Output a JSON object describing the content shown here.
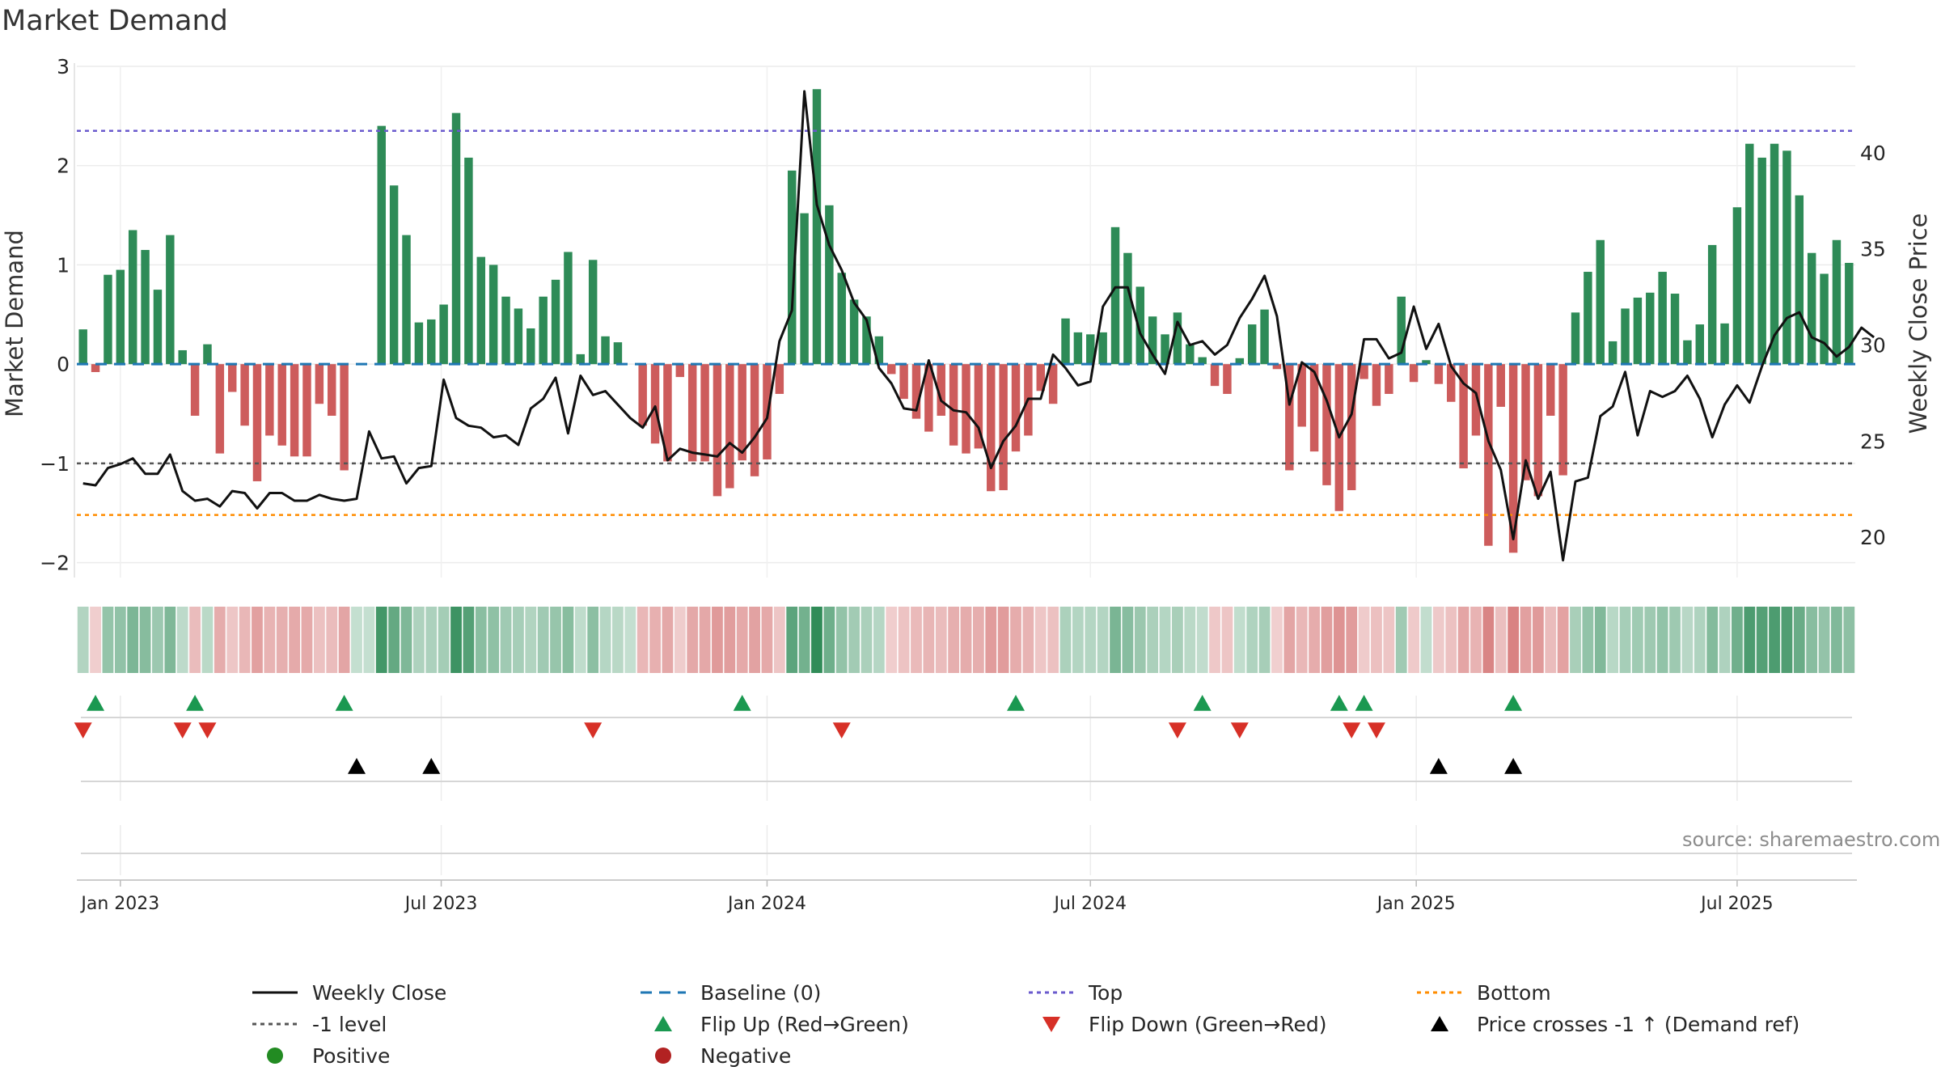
{
  "title": "Market Demand",
  "source": "source: sharemaestro.com",
  "colors": {
    "positive": "#2e8b57",
    "negative": "#cd5c5c",
    "close": "#111111",
    "baseline": "#1f77b4",
    "top": "#6a5acd",
    "bottom": "#ff8c00",
    "minus1": "#555555",
    "flip_up": "#1a9850",
    "flip_down": "#d73027",
    "cross": "#000000",
    "legend_positive": "#228b22",
    "legend_negative": "#b22222"
  },
  "chart_data": {
    "type": "bar",
    "title": "Market Demand",
    "ylabel": "Market Demand",
    "y2label": "Weekly Close Price",
    "ylim": [
      -2.15,
      3.0
    ],
    "y2lim": [
      17.9,
      44.5
    ],
    "yticks": [
      3,
      2,
      1,
      0,
      -1,
      -2
    ],
    "ytick_labels": [
      "3",
      "2",
      "1",
      "0",
      "−1",
      "−2"
    ],
    "y2ticks": [
      40,
      35,
      30,
      25,
      20
    ],
    "y2tick_labels": [
      "40",
      "35",
      "30",
      "25",
      "20"
    ],
    "xticks": [
      {
        "label": "Jan 2023",
        "week": 3.0
      },
      {
        "label": "Jul 2023",
        "week": 28.8
      },
      {
        "label": "Jan 2024",
        "week": 55.0
      },
      {
        "label": "Jul 2024",
        "week": 81.0
      },
      {
        "label": "Jan 2025",
        "week": 107.2
      },
      {
        "label": "Jul 2025",
        "week": 133.0
      }
    ],
    "levels": {
      "baseline": 0,
      "top": 2.35,
      "bottom": -1.52,
      "minus1": -1
    },
    "demand": [
      0.35,
      -0.08,
      0.9,
      0.95,
      1.35,
      1.15,
      0.75,
      1.3,
      0.14,
      -0.52,
      0.2,
      -0.9,
      -0.28,
      -0.62,
      -1.18,
      -0.72,
      -0.82,
      -0.93,
      -0.93,
      -0.4,
      -0.52,
      -1.07,
      0,
      0,
      2.4,
      1.8,
      1.3,
      0.42,
      0.45,
      0.6,
      2.53,
      2.08,
      1.08,
      1.0,
      0.68,
      0.56,
      0.36,
      0.68,
      0.85,
      1.13,
      0.1,
      1.05,
      0.28,
      0.22,
      0,
      -0.62,
      -0.8,
      -0.98,
      -0.13,
      -0.98,
      -0.98,
      -1.33,
      -1.25,
      -0.97,
      -1.13,
      -0.96,
      -0.3,
      1.95,
      1.52,
      2.77,
      1.6,
      0.92,
      0.65,
      0.48,
      0.28,
      -0.1,
      -0.35,
      -0.55,
      -0.68,
      -0.52,
      -0.82,
      -0.9,
      -0.85,
      -1.28,
      -1.27,
      -0.88,
      -0.72,
      -0.27,
      -0.4,
      0.46,
      0.32,
      0.3,
      0.32,
      1.38,
      1.12,
      0.78,
      0.48,
      0.3,
      0.52,
      0.2,
      0.07,
      -0.22,
      -0.3,
      0.06,
      0.4,
      0.55,
      -0.05,
      -1.07,
      -0.63,
      -0.88,
      -1.22,
      -1.48,
      -1.27,
      -0.15,
      -0.42,
      -0.3,
      0.68,
      -0.18,
      0.04,
      -0.2,
      -0.38,
      -1.05,
      -0.72,
      -1.83,
      -0.43,
      -1.9,
      -1.17,
      -1.33,
      -0.52,
      -1.12,
      0.52,
      0.93,
      1.25,
      0.23,
      0.56,
      0.67,
      0.72,
      0.93,
      0.71,
      0.24,
      0.4,
      1.2,
      0.41,
      1.58,
      2.22,
      2.08,
      2.22,
      2.15,
      1.7,
      1.12,
      0.91,
      1.25,
      1.02
    ],
    "weekly_close": [
      22.8,
      22.7,
      23.6,
      23.8,
      24.1,
      23.3,
      23.3,
      24.3,
      22.4,
      21.9,
      22.0,
      21.6,
      22.4,
      22.3,
      21.5,
      22.3,
      22.3,
      21.9,
      21.9,
      22.2,
      22.0,
      21.9,
      22.0,
      25.5,
      24.1,
      24.2,
      22.8,
      23.6,
      23.7,
      28.2,
      26.2,
      25.8,
      25.7,
      25.2,
      25.3,
      24.8,
      26.7,
      27.2,
      28.3,
      25.4,
      28.4,
      27.4,
      27.6,
      26.9,
      26.2,
      25.7,
      26.8,
      24.0,
      24.6,
      24.4,
      24.3,
      24.2,
      24.9,
      24.4,
      25.2,
      26.2,
      30.2,
      31.8,
      43.2,
      37.3,
      35.2,
      33.9,
      32.2,
      31.3,
      28.8,
      28.0,
      26.7,
      26.6,
      29.2,
      27.1,
      26.6,
      26.5,
      25.7,
      23.6,
      25.0,
      25.8,
      27.2,
      27.2,
      29.5,
      28.8,
      27.9,
      28.1,
      32.0,
      33.0,
      33.0,
      30.6,
      29.5,
      28.5,
      31.2,
      30.0,
      30.2,
      29.5,
      30.0,
      31.4,
      32.4,
      33.6,
      31.5,
      26.9,
      29.1,
      28.6,
      27.1,
      25.2,
      26.4,
      30.3,
      30.3,
      29.3,
      29.6,
      32.0,
      29.8,
      31.1,
      28.9,
      28.0,
      27.5,
      25.0,
      23.5,
      19.9,
      24.0,
      22.0,
      23.4,
      18.8,
      22.9,
      23.1,
      26.3,
      26.8,
      28.6,
      25.3,
      27.6,
      27.3,
      27.6,
      28.4,
      27.2,
      25.2,
      26.9,
      27.9,
      27.0,
      28.9,
      30.5,
      31.4,
      31.7,
      30.4,
      30.1,
      29.4,
      29.9,
      30.9,
      30.4
    ],
    "flip_up_weeks": [
      1,
      9,
      21,
      53,
      75,
      90,
      101,
      103,
      115
    ],
    "flip_down_weeks": [
      0,
      8,
      10,
      41,
      61,
      88,
      93,
      102,
      104
    ],
    "price_cross_weeks": [
      22,
      28,
      109,
      115
    ]
  },
  "legend": [
    {
      "label": "Weekly Close",
      "symbol": "line",
      "color_key": "close"
    },
    {
      "label": "Baseline (0)",
      "symbol": "dash",
      "color_key": "baseline"
    },
    {
      "label": "Top",
      "symbol": "dot",
      "color_key": "top"
    },
    {
      "label": "Bottom",
      "symbol": "dot",
      "color_key": "bottom"
    },
    {
      "label": "-1 level",
      "symbol": "dot",
      "color_key": "minus1"
    },
    {
      "label": "Flip Up (Red→Green)",
      "symbol": "tri-up",
      "color_key": "flip_up"
    },
    {
      "label": "Flip Down (Green→Red)",
      "symbol": "tri-down",
      "color_key": "flip_down"
    },
    {
      "label": "Price crosses -1 ↑ (Demand ref)",
      "symbol": "tri-up",
      "color_key": "cross"
    },
    {
      "label": "Positive",
      "symbol": "circle",
      "color_key": "legend_positive"
    },
    {
      "label": "Negative",
      "symbol": "circle",
      "color_key": "legend_negative"
    }
  ]
}
